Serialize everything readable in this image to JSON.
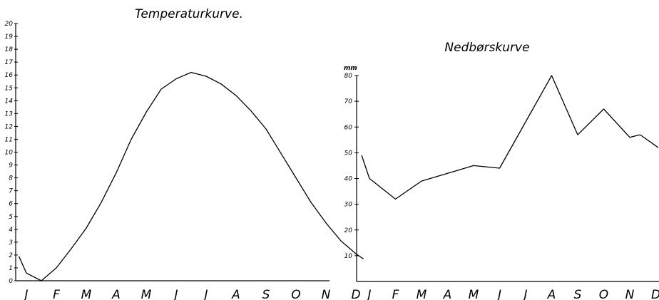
{
  "chart_data": [
    {
      "type": "line",
      "title": "Temperaturkurve.",
      "categories": [
        "J",
        "F",
        "M",
        "A",
        "M",
        "J",
        "J",
        "A",
        "S",
        "O",
        "N",
        "D"
      ],
      "x": [
        -0.25,
        0,
        0.5,
        1,
        1.5,
        2,
        2.5,
        3,
        3.5,
        4,
        4.5,
        5,
        5.5,
        6,
        6.5,
        7,
        7.5,
        8,
        8.5,
        9,
        9.5,
        10,
        10.5,
        11,
        11.25
      ],
      "values": [
        1.9,
        0.6,
        0.0,
        1.0,
        2.5,
        4.1,
        6.1,
        8.4,
        11.0,
        13.1,
        14.9,
        15.7,
        16.2,
        15.9,
        15.3,
        14.4,
        13.2,
        11.8,
        9.9,
        8.0,
        6.1,
        4.5,
        3.1,
        2.1,
        1.7
      ],
      "xlabel": "",
      "ylabel": "",
      "ylim": [
        0,
        20
      ],
      "yticks": [
        "0",
        "1",
        "2",
        "3",
        "4",
        "5",
        "6",
        "7",
        "8",
        "9",
        "10",
        "11",
        "12",
        "13",
        "14",
        "15",
        "16",
        "17",
        "18",
        "19",
        "20"
      ],
      "grid": false
    },
    {
      "type": "line",
      "title": "Nedbørskurve",
      "categories": [
        "J",
        "F",
        "M",
        "A",
        "M",
        "J",
        "J",
        "A",
        "S",
        "O",
        "N",
        "D"
      ],
      "x": [
        -0.3,
        0,
        1,
        2,
        3,
        4,
        5,
        5.5,
        6,
        7,
        8,
        9,
        10,
        10.4
      ],
      "values": [
        49,
        40,
        32,
        39,
        42,
        45,
        44,
        53,
        62,
        80,
        57,
        67,
        56,
        57
      ],
      "extra_point": {
        "x": 11,
        "value": 52
      },
      "xlabel": "",
      "ylabel": "mm",
      "ylim": [
        0,
        80
      ],
      "yticks": [
        "10",
        "20",
        "30",
        "40",
        "50",
        "60",
        "70",
        "80"
      ],
      "grid": false
    }
  ]
}
